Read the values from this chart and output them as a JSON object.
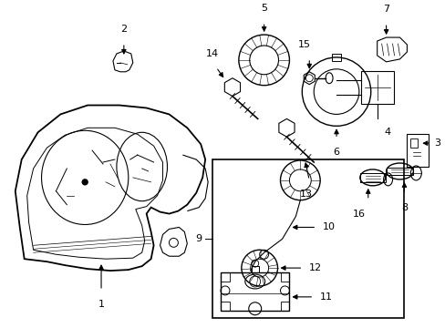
{
  "background_color": "#ffffff",
  "figure_width": 4.89,
  "figure_height": 3.6,
  "dpi": 100,
  "line_color": "#000000",
  "line_width": 1.0,
  "text_fontsize": 8.0
}
